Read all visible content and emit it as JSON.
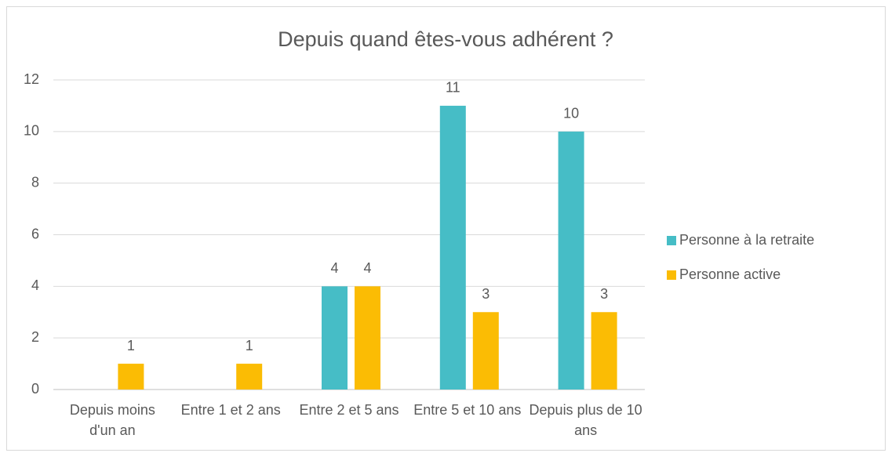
{
  "chart_data": {
    "type": "bar",
    "title": "Depuis quand êtes-vous adhérent ?",
    "categories": [
      "Depuis moins d'un an",
      "Entre 1 et 2 ans",
      "Entre 2 et 5 ans",
      "Entre 5 et 10 ans",
      "Depuis plus de 10 ans"
    ],
    "series": [
      {
        "name": "Personne à la retraite",
        "color": "#46bdc6",
        "values": [
          0,
          0,
          4,
          11,
          10
        ]
      },
      {
        "name": "Personne active",
        "color": "#fbbc04",
        "values": [
          1,
          1,
          4,
          3,
          3
        ]
      }
    ],
    "ylim": [
      0,
      12
    ],
    "yticks": [
      0,
      2,
      4,
      6,
      8,
      10,
      12
    ],
    "grid": true,
    "legend": "right"
  }
}
